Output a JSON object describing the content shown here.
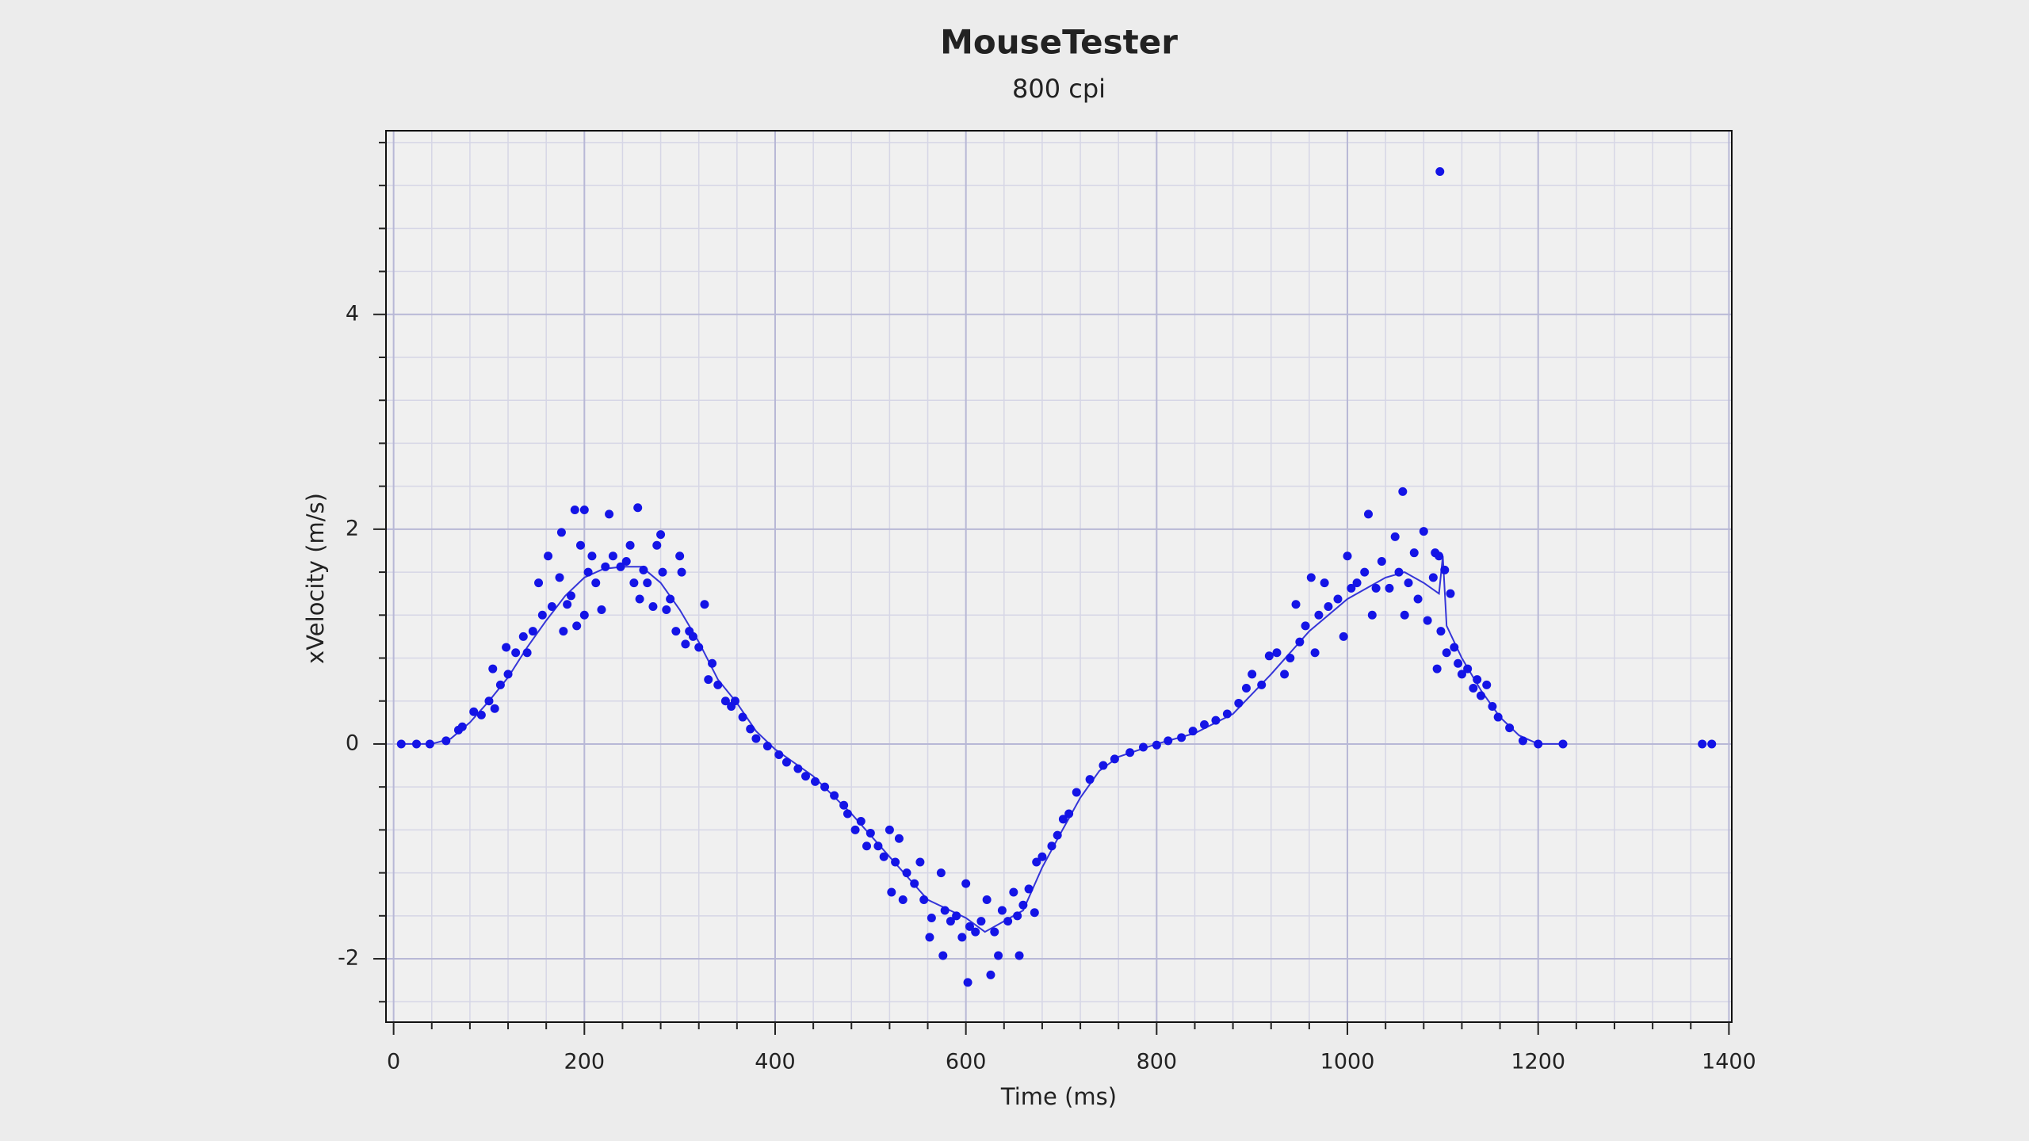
{
  "chart_data": {
    "type": "scatter",
    "title": "MouseTester",
    "subtitle": "800 cpi",
    "x_label": "Time (ms)",
    "y_label": "xVelocity (m/s)",
    "xlim": [
      -8,
      1403
    ],
    "ylim": [
      -2.59,
      5.71
    ],
    "xticks": [
      0,
      200,
      400,
      600,
      800,
      1000,
      1200,
      1400
    ],
    "yticks": [
      -2,
      0,
      2,
      4
    ],
    "xminorticks": [
      40,
      80,
      120,
      160,
      240,
      280,
      320,
      360,
      440,
      480,
      520,
      560,
      640,
      680,
      720,
      760,
      840,
      880,
      920,
      960,
      1040,
      1080,
      1120,
      1160,
      1240,
      1280,
      1320,
      1360
    ],
    "yminorticks": [
      -2.4,
      -1.6,
      -1.2,
      -0.8,
      -0.4,
      0.4,
      0.8,
      1.2,
      1.6,
      2.4,
      2.8,
      3.2,
      3.6,
      4.4,
      4.8,
      5.2,
      5.6
    ],
    "grid": true,
    "series": [
      {
        "mode": "markers",
        "color": "#1414e6",
        "x": [
          8,
          24,
          38,
          55,
          68,
          72,
          84,
          92,
          100,
          104,
          106,
          112,
          118,
          120,
          128,
          136,
          140,
          146,
          152,
          156,
          162,
          166,
          174,
          176,
          178,
          182,
          186,
          190,
          192,
          196,
          200,
          200,
          204,
          208,
          212,
          218,
          222,
          226,
          230,
          238,
          244,
          248,
          252,
          256,
          258,
          262,
          266,
          272,
          276,
          280,
          282,
          286,
          290,
          296,
          300,
          302,
          306,
          310,
          314,
          320,
          326,
          330,
          334,
          340,
          348,
          354,
          358,
          366,
          374,
          380,
          392,
          404,
          412,
          424,
          432,
          442,
          452,
          462,
          472,
          476,
          484,
          490,
          496,
          500,
          508,
          514,
          520,
          522,
          526,
          530,
          534,
          538,
          546,
          552,
          556,
          562,
          564,
          574,
          576,
          578,
          584,
          590,
          596,
          600,
          602,
          604,
          610,
          616,
          622,
          626,
          630,
          634,
          638,
          644,
          650,
          654,
          656,
          660,
          666,
          672,
          674,
          680,
          690,
          696,
          702,
          708,
          716,
          730,
          744,
          756,
          772,
          786,
          800,
          812,
          826,
          838,
          850,
          862,
          874,
          886,
          894,
          900,
          910,
          918,
          926,
          934,
          940,
          946,
          950,
          956,
          962,
          966,
          970,
          976,
          980,
          990,
          996,
          1000,
          1004,
          1010,
          1018,
          1022,
          1026,
          1030,
          1036,
          1044,
          1050,
          1054,
          1058,
          1060,
          1064,
          1070,
          1074,
          1080,
          1084,
          1090,
          1092,
          1094,
          1096,
          1098,
          1102,
          1104,
          1108,
          1112,
          1116,
          1120,
          1126,
          1132,
          1136,
          1140,
          1146,
          1152,
          1158,
          1170,
          1184,
          1200,
          1226,
          1372,
          1382,
          1097
        ],
        "values": [
          0,
          0,
          0,
          0.03,
          0.13,
          0.16,
          0.3,
          0.27,
          0.4,
          0.7,
          0.33,
          0.55,
          0.9,
          0.65,
          0.85,
          1.0,
          0.85,
          1.05,
          1.5,
          1.2,
          1.75,
          1.28,
          1.55,
          1.97,
          1.05,
          1.3,
          1.38,
          2.18,
          1.1,
          1.85,
          1.2,
          2.18,
          1.6,
          1.75,
          1.5,
          1.25,
          1.65,
          2.14,
          1.75,
          1.65,
          1.7,
          1.85,
          1.5,
          2.2,
          1.35,
          1.62,
          1.5,
          1.28,
          1.85,
          1.95,
          1.6,
          1.25,
          1.35,
          1.05,
          1.75,
          1.6,
          0.93,
          1.05,
          1.0,
          0.9,
          1.3,
          0.6,
          0.75,
          0.55,
          0.4,
          0.35,
          0.4,
          0.25,
          0.14,
          0.05,
          -0.02,
          -0.1,
          -0.17,
          -0.23,
          -0.3,
          -0.35,
          -0.4,
          -0.48,
          -0.57,
          -0.65,
          -0.8,
          -0.72,
          -0.95,
          -0.83,
          -0.95,
          -1.05,
          -0.8,
          -1.38,
          -1.1,
          -0.88,
          -1.45,
          -1.2,
          -1.3,
          -1.1,
          -1.45,
          -1.8,
          -1.62,
          -1.2,
          -1.97,
          -1.55,
          -1.65,
          -1.6,
          -1.8,
          -1.3,
          -2.22,
          -1.7,
          -1.75,
          -1.65,
          -1.45,
          -2.15,
          -1.75,
          -1.97,
          -1.55,
          -1.65,
          -1.38,
          -1.6,
          -1.97,
          -1.5,
          -1.35,
          -1.57,
          -1.1,
          -1.05,
          -0.95,
          -0.85,
          -0.7,
          -0.65,
          -0.45,
          -0.33,
          -0.2,
          -0.14,
          -0.08,
          -0.03,
          -0.01,
          0.03,
          0.06,
          0.12,
          0.18,
          0.22,
          0.28,
          0.38,
          0.52,
          0.65,
          0.55,
          0.82,
          0.85,
          0.65,
          0.8,
          1.3,
          0.95,
          1.1,
          1.55,
          0.85,
          1.2,
          1.5,
          1.28,
          1.35,
          1.0,
          1.75,
          1.45,
          1.5,
          1.6,
          2.14,
          1.2,
          1.45,
          1.7,
          1.45,
          1.93,
          1.6,
          2.35,
          1.2,
          1.5,
          1.78,
          1.35,
          1.98,
          1.15,
          1.55,
          1.78,
          0.7,
          1.75,
          1.05,
          1.62,
          0.85,
          1.4,
          0.9,
          0.75,
          0.65,
          0.7,
          0.52,
          0.6,
          0.45,
          0.55,
          0.35,
          0.25,
          0.15,
          0.03,
          0,
          0,
          0,
          0,
          5.33
        ]
      },
      {
        "mode": "line",
        "color": "#3535d8",
        "x": [
          8,
          40,
          60,
          80,
          100,
          120,
          140,
          160,
          180,
          200,
          220,
          240,
          260,
          280,
          300,
          320,
          340,
          360,
          380,
          400,
          440,
          480,
          520,
          560,
          600,
          620,
          640,
          660,
          680,
          700,
          720,
          740,
          760,
          800,
          840,
          880,
          920,
          960,
          1000,
          1040,
          1060,
          1080,
          1096,
          1100,
          1104,
          1120,
          1140,
          1160,
          1180,
          1200,
          1230
        ],
        "values": [
          0,
          0,
          0.05,
          0.2,
          0.4,
          0.62,
          0.9,
          1.15,
          1.38,
          1.55,
          1.63,
          1.65,
          1.65,
          1.5,
          1.25,
          0.95,
          0.6,
          0.38,
          0.12,
          -0.05,
          -0.3,
          -0.65,
          -1.05,
          -1.45,
          -1.62,
          -1.75,
          -1.65,
          -1.55,
          -1.15,
          -0.82,
          -0.5,
          -0.25,
          -0.12,
          0,
          0.1,
          0.28,
          0.65,
          1.05,
          1.35,
          1.55,
          1.6,
          1.5,
          1.4,
          1.75,
          1.1,
          0.8,
          0.5,
          0.25,
          0.08,
          0,
          0
        ]
      }
    ]
  }
}
